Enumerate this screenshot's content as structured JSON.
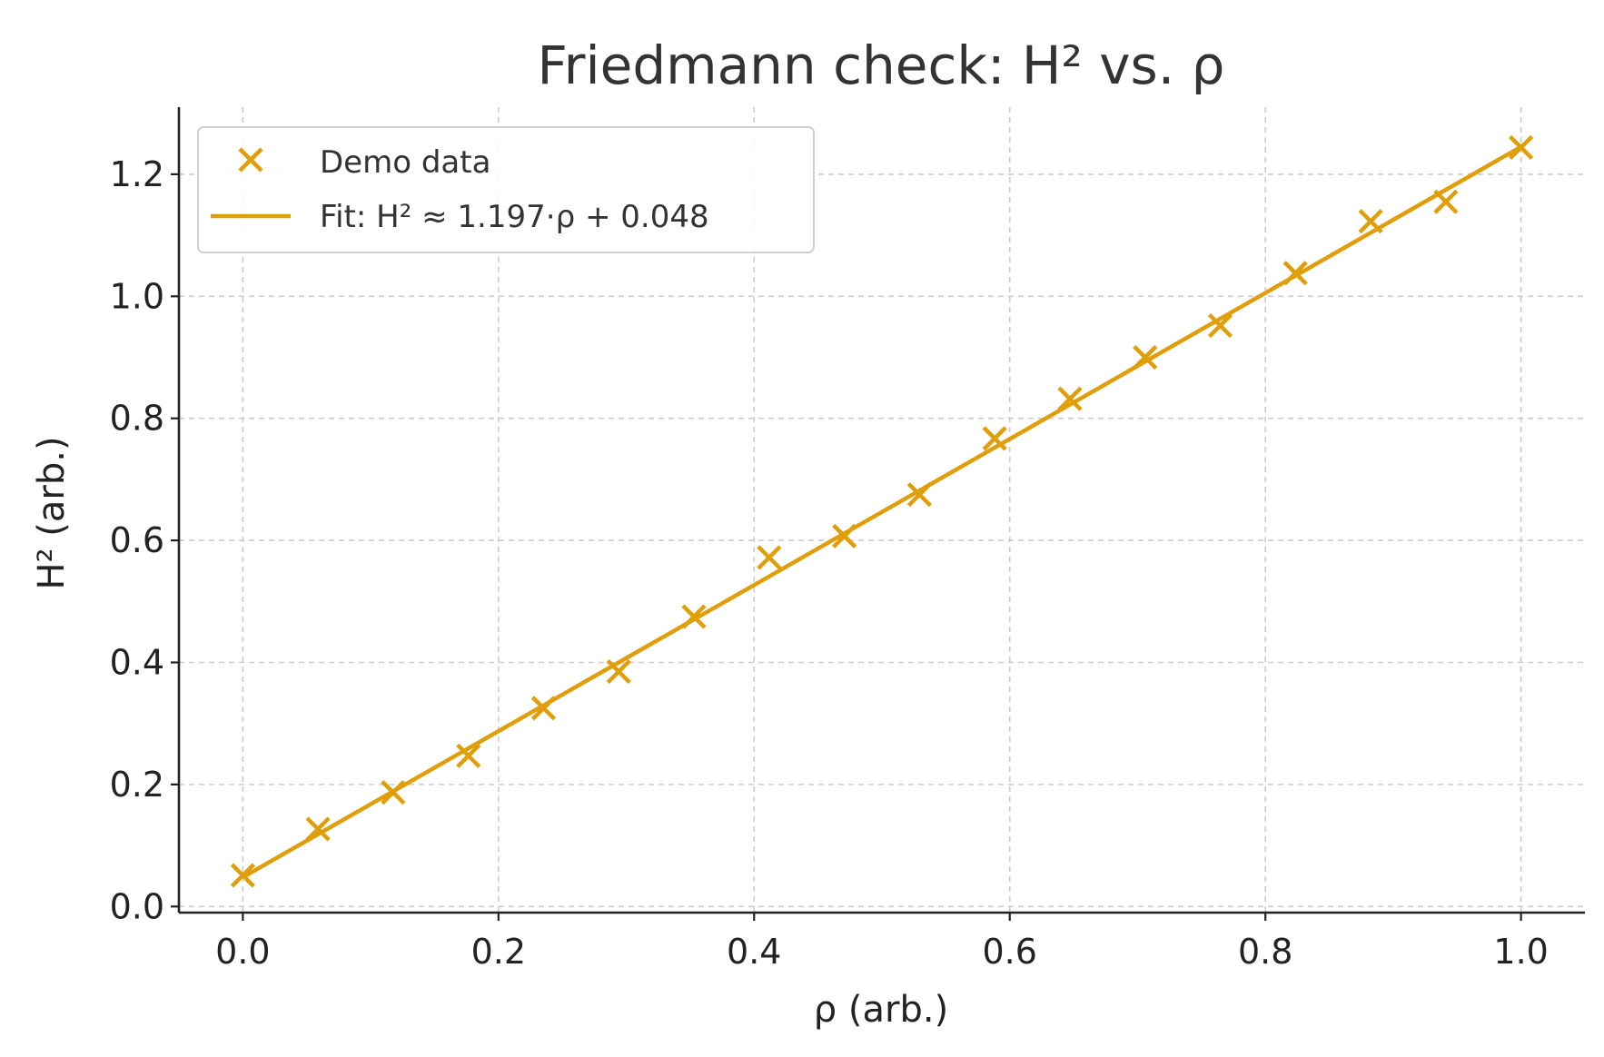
{
  "chart_data": {
    "type": "scatter",
    "title": "Friedmann check: H² vs. ρ",
    "xlabel": "ρ (arb.)",
    "ylabel": "H² (arb.)",
    "xlim": [
      -0.05,
      1.05
    ],
    "ylim": [
      -0.01,
      1.31
    ],
    "xticks": [
      0.0,
      0.2,
      0.4,
      0.6,
      0.8,
      1.0
    ],
    "xtick_labels": [
      "0.0",
      "0.2",
      "0.4",
      "0.6",
      "0.8",
      "1.0"
    ],
    "yticks": [
      0.0,
      0.2,
      0.4,
      0.6,
      0.8,
      1.0,
      1.2
    ],
    "ytick_labels": [
      "0.0",
      "0.2",
      "0.4",
      "0.6",
      "0.8",
      "1.0",
      "1.2"
    ],
    "grid": true,
    "legend_position": "top-left",
    "color": "#E09F0A",
    "series": [
      {
        "name": "Demo data",
        "marker": "x",
        "x": [
          0.0,
          0.0588,
          0.1176,
          0.1765,
          0.2353,
          0.2941,
          0.3529,
          0.4118,
          0.4706,
          0.5294,
          0.5882,
          0.6471,
          0.7059,
          0.7647,
          0.8235,
          0.8824,
          0.9412,
          1.0
        ],
        "y": [
          0.051,
          0.127,
          0.187,
          0.247,
          0.325,
          0.385,
          0.475,
          0.572,
          0.607,
          0.675,
          0.767,
          0.832,
          0.9,
          0.952,
          1.038,
          1.123,
          1.155,
          1.244
        ]
      },
      {
        "name": "Fit: H² ≈ 1.197·ρ + 0.048",
        "type": "line",
        "x": [
          0.0,
          1.0
        ],
        "y": [
          0.048,
          1.245
        ]
      }
    ]
  }
}
